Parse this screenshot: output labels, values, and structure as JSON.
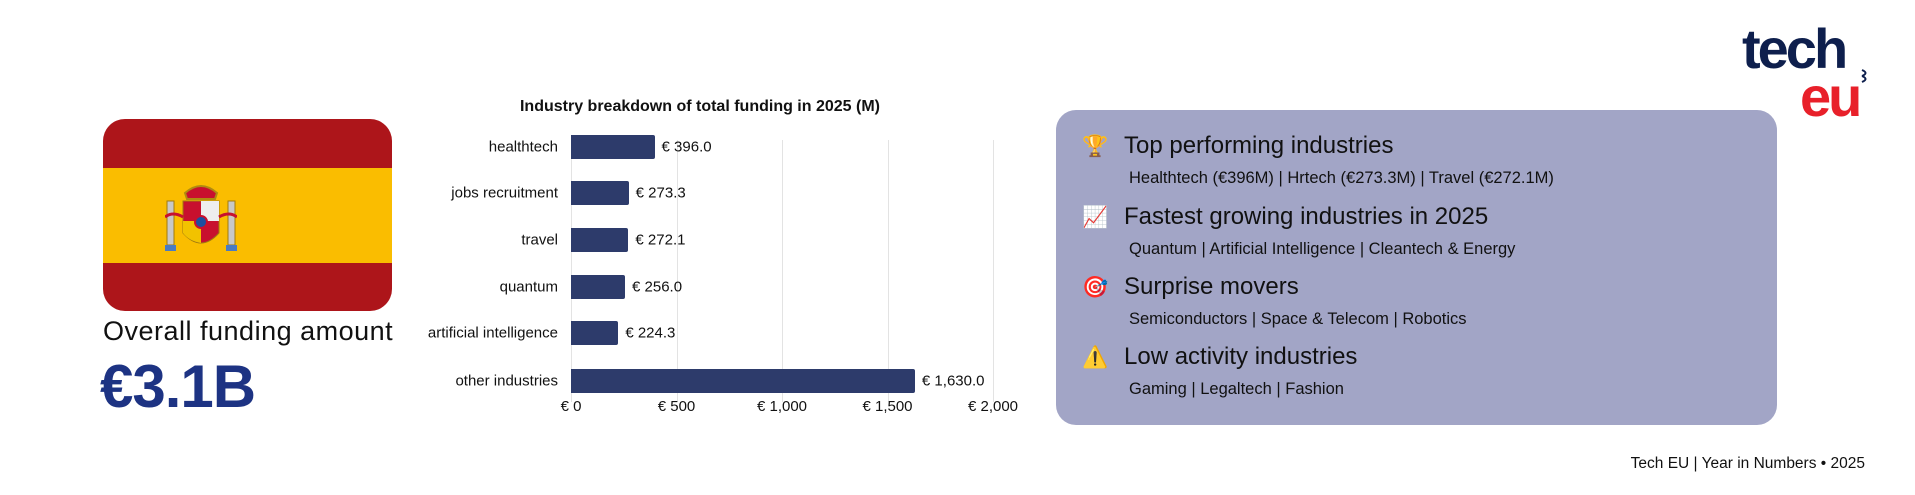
{
  "left": {
    "flag_icon": "spain-flag",
    "overall_label": "Overall funding amount",
    "overall_value": "€3.1B"
  },
  "chart_data": {
    "type": "bar",
    "orientation": "horizontal",
    "title": "Industry breakdown of total funding in 2025 (M)",
    "categories": [
      "healthtech",
      "jobs recruitment",
      "travel",
      "quantum",
      "artificial intelligence",
      "other industries"
    ],
    "values": [
      396.0,
      273.3,
      272.1,
      256.0,
      224.3,
      1630.0
    ],
    "data_labels": [
      "€ 396.0",
      "€ 273.3",
      "€ 272.1",
      "€ 256.0",
      "€ 224.3",
      "€ 1,630.0"
    ],
    "xlim": [
      0,
      2000
    ],
    "xticks": [
      0,
      500,
      1000,
      1500,
      2000
    ],
    "xtick_labels": [
      "€ 0",
      "€ 500",
      "€ 1,000",
      "€ 1,500",
      "€ 2,000"
    ],
    "xlabel": "",
    "ylabel": "",
    "grid": "vertical",
    "bar_color": "#2d3b6b"
  },
  "panel": {
    "sections": [
      {
        "icon": "trophy-icon",
        "glyph": "🏆",
        "title": "Top performing industries",
        "detail": "Healthtech (€396M) | Hrtech (€273.3M) | Travel (€272.1M)"
      },
      {
        "icon": "chart-increasing-icon",
        "glyph": "📈",
        "title": "Fastest growing industries in 2025",
        "detail": "Quantum | Artificial Intelligence | Cleantech & Energy"
      },
      {
        "icon": "target-icon",
        "glyph": "🎯",
        "title": "Surprise movers",
        "detail": "Semiconductors | Space & Telecom | Robotics"
      },
      {
        "icon": "warning-icon",
        "glyph": "⚠️",
        "title": "Low activity industries",
        "detail": "Gaming | Legaltech | Fashion"
      }
    ]
  },
  "logo": {
    "line1": "tech",
    "line2": "eu"
  },
  "footer": "Tech EU | Year in Numbers • 2025",
  "colors": {
    "navy": "#1d3383",
    "logo_navy": "#0e1f4d",
    "logo_red": "#e8202a",
    "panel": "#a2a5c6",
    "flag_red": "#ad151a",
    "flag_yellow": "#fabd00"
  }
}
